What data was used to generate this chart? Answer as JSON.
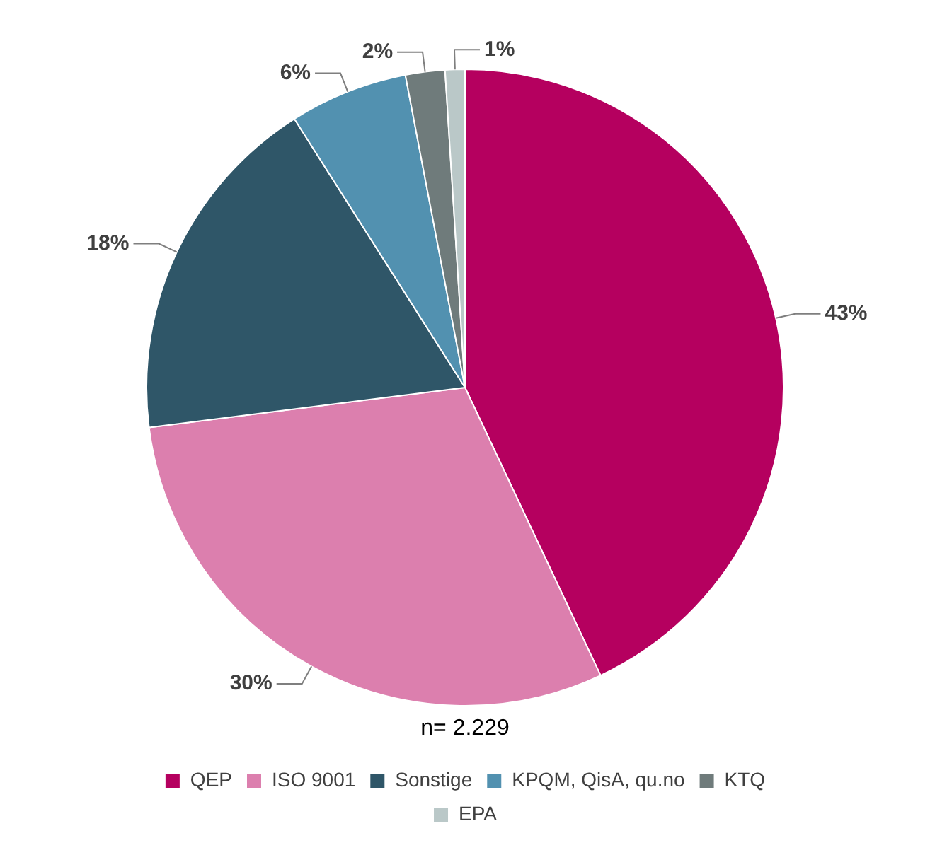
{
  "chart_data": {
    "type": "pie",
    "categories": [
      "QEP",
      "ISO 9001",
      "Sonstige",
      "KPQM, QisA, qu.no",
      "KTQ",
      "EPA"
    ],
    "values": [
      43,
      30,
      18,
      6,
      2,
      1
    ],
    "colors": [
      "#b5005f",
      "#dc7fae",
      "#2f5668",
      "#5291b0",
      "#6f7b7b",
      "#bac8c8"
    ],
    "value_labels": [
      "43%",
      "30%",
      "18%",
      "6%",
      "2%",
      "1%"
    ],
    "annotations": [
      "n= 2.229"
    ],
    "legend": "bottom"
  }
}
